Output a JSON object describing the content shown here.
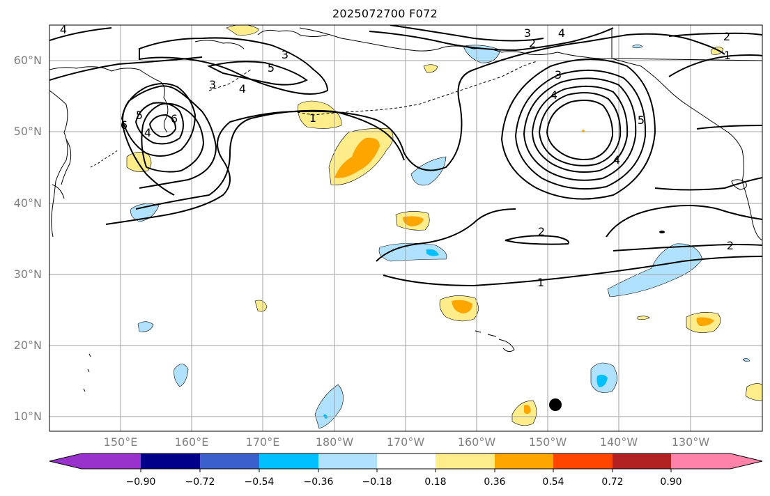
{
  "title": "2025072700 F072",
  "latitude_labels": [
    "60°N",
    "50°N",
    "40°N",
    "30°N",
    "20°N",
    "10°N"
  ],
  "longitude_labels": [
    "150°E",
    "160°E",
    "170°E",
    "180°W",
    "170°W",
    "160°W",
    "150°W",
    "140°W",
    "130°W"
  ],
  "colorbar": {
    "tick_labels": [
      "−0.90",
      "−0.72",
      "−0.54",
      "−0.36",
      "−0.18",
      "0.18",
      "0.36",
      "0.54",
      "0.72",
      "0.90"
    ],
    "colors": [
      "#9932cc",
      "#00008b",
      "#3a5fcd",
      "#00bfff",
      "#b0e2ff",
      "#ffffff",
      "#ffec8b",
      "#ffa500",
      "#ff4500",
      "#b22222",
      "#ff82ab"
    ]
  },
  "contour_labels": [
    "4",
    "3",
    "5",
    "4",
    "3",
    "2",
    "4",
    "3",
    "4",
    "5",
    "1",
    "6",
    "4",
    "3",
    "2",
    "4",
    "5",
    "6",
    "2",
    "1",
    "2",
    "1"
  ],
  "colors": {
    "grid": "#a0a0a0",
    "contour": "#000000",
    "coastline": "#000000",
    "axis_label": "#808080"
  },
  "marker": "black-dot"
}
